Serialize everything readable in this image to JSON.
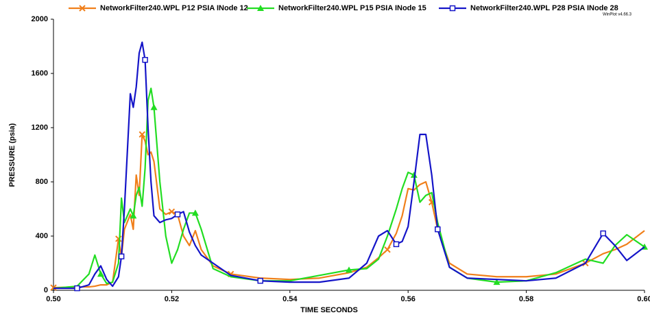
{
  "chart_data": {
    "type": "line",
    "xlabel": "TIME  SECONDS",
    "ylabel": "PRESSURE (psia)",
    "watermark": "WinPlot v4.66.3",
    "xlim": [
      0.5,
      0.6
    ],
    "xticks": [
      {
        "value": 0.5,
        "label": "0.50"
      },
      {
        "value": 0.52,
        "label": "0.52"
      },
      {
        "value": 0.54,
        "label": "0.54"
      },
      {
        "value": 0.56,
        "label": "0.56"
      },
      {
        "value": 0.58,
        "label": "0.58"
      },
      {
        "value": 0.6,
        "label": "0.60"
      }
    ],
    "ylim": [
      0,
      2000
    ],
    "yticks": [
      0,
      400,
      800,
      1200,
      1600,
      2000
    ],
    "x": [
      0.5,
      0.504,
      0.506,
      0.507,
      0.508,
      0.509,
      0.51,
      0.511,
      0.5115,
      0.512,
      0.513,
      0.5135,
      0.514,
      0.5145,
      0.515,
      0.5155,
      0.516,
      0.5165,
      0.517,
      0.518,
      0.519,
      0.52,
      0.521,
      0.522,
      0.523,
      0.524,
      0.525,
      0.527,
      0.53,
      0.535,
      0.54,
      0.545,
      0.55,
      0.553,
      0.555,
      0.5565,
      0.558,
      0.559,
      0.56,
      0.561,
      0.562,
      0.563,
      0.564,
      0.565,
      0.567,
      0.57,
      0.575,
      0.58,
      0.585,
      0.59,
      0.593,
      0.595,
      0.597,
      0.6
    ],
    "series": [
      {
        "name": "NetworkFilter240.WPL  P12  PSIA   INode 12",
        "color": "#f07f1a",
        "marker": "x",
        "values": [
          20,
          25,
          25,
          30,
          40,
          40,
          60,
          380,
          250,
          450,
          560,
          450,
          850,
          700,
          1150,
          1100,
          1000,
          1020,
          950,
          600,
          560,
          580,
          560,
          400,
          330,
          440,
          300,
          180,
          120,
          90,
          80,
          90,
          130,
          170,
          240,
          300,
          420,
          550,
          750,
          740,
          780,
          800,
          650,
          450,
          200,
          120,
          100,
          100,
          120,
          200,
          270,
          300,
          340,
          440
        ]
      },
      {
        "name": "NetworkFilter240.WPL  P15  PSIA   INode 15",
        "color": "#22dd22",
        "marker": "triangle",
        "values": [
          15,
          30,
          120,
          260,
          120,
          50,
          60,
          200,
          680,
          500,
          600,
          550,
          700,
          760,
          620,
          900,
          1400,
          1490,
          1350,
          800,
          400,
          200,
          300,
          450,
          570,
          570,
          450,
          160,
          100,
          70,
          70,
          110,
          150,
          160,
          230,
          400,
          600,
          750,
          870,
          850,
          650,
          700,
          720,
          500,
          170,
          90,
          60,
          70,
          130,
          230,
          200,
          330,
          410,
          320
        ]
      },
      {
        "name": "NetworkFilter240.WPL  P28  PSIA   INode 28",
        "color": "#1414c8",
        "marker": "square",
        "values": [
          15,
          15,
          40,
          120,
          180,
          80,
          30,
          100,
          250,
          600,
          1450,
          1350,
          1500,
          1750,
          1830,
          1700,
          1200,
          800,
          550,
          500,
          520,
          530,
          560,
          580,
          430,
          330,
          260,
          200,
          110,
          70,
          60,
          60,
          90,
          200,
          400,
          440,
          340,
          360,
          470,
          800,
          1150,
          1150,
          850,
          450,
          170,
          90,
          80,
          70,
          90,
          200,
          420,
          330,
          220,
          320
        ]
      }
    ]
  }
}
